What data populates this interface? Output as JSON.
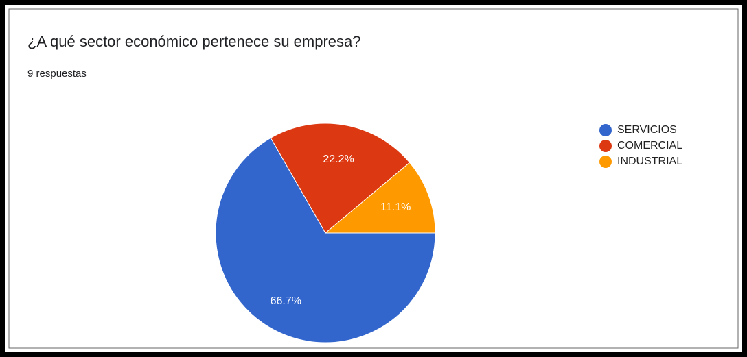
{
  "chart_data": {
    "type": "pie",
    "title": "¿A qué sector económico pertenece su empresa?",
    "subtitle": "9 respuestas",
    "categories": [
      "SERVICIOS",
      "COMERCIAL",
      "INDUSTRIAL"
    ],
    "values": [
      66.7,
      22.2,
      11.1
    ],
    "value_labels": [
      "66.7%",
      "22.2%",
      "11.1%"
    ],
    "colors": [
      "#3366cc",
      "#dc3912",
      "#ff9900"
    ],
    "legend": "right"
  }
}
